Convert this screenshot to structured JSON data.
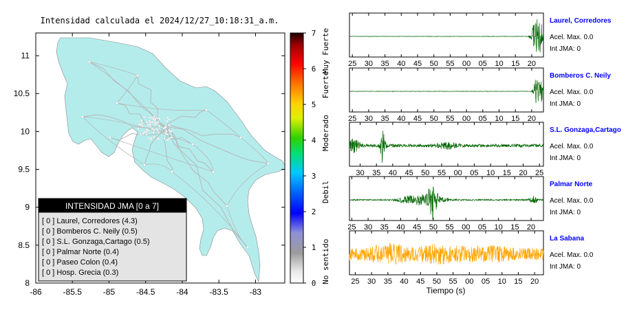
{
  "chart_data": [
    {
      "type": "map",
      "title": "Intensidad calculada el 2024/12/27_10:18:31_a.m.",
      "x_ticks": [
        "-86",
        "-85.5",
        "-85",
        "-84.5",
        "-84",
        "-83.5",
        "-83"
      ],
      "y_ticks": [
        "11",
        "10.5",
        "10",
        "9.5",
        "9",
        "8.5",
        "8"
      ],
      "xlim": [
        -86,
        -82.6
      ],
      "ylim": [
        8,
        11.3
      ],
      "land_color": "#b4ecec",
      "road_color": "#b8b8b8",
      "legend": {
        "title": "INTENSIDAD JMA [0 a 7]",
        "items": [
          "[ 0 ] Laurel, Corredores (4.3)",
          "[ 0 ] Bomberos C. Neily (0.5)",
          "[ 0 ] S.L. Gonzaga,Cartago (0.5)",
          "[ 0 ] Palmar Norte (0.4)",
          "[ 0 ] Paseo Colon (0.4)",
          "[ 0 ] Hosp. Grecia (0.3)"
        ]
      },
      "colorbar": {
        "ticks": [
          "0",
          "1",
          "2",
          "3",
          "4",
          "5",
          "6",
          "7"
        ],
        "range": [
          0,
          7
        ],
        "labels": [
          "No sentido",
          "Debil",
          "Moderado",
          "Fuerte",
          "Muy Fuerte"
        ]
      }
    },
    {
      "type": "line",
      "xlabel": "Tiempo (s)",
      "seismograms": [
        {
          "name": "Laurel, Corredores",
          "acel_label": "Acel. Max. 0.0",
          "jma_label": "Int JMA: 0",
          "color": "#006400",
          "ticks": [
            "25",
            "30",
            "35",
            "40",
            "45",
            "50",
            "55",
            "00",
            "05",
            "10",
            "15",
            "20"
          ]
        },
        {
          "name": "Bomberos C. Neily",
          "acel_label": "Acel. Max. 0.0",
          "jma_label": "Int JMA: 0",
          "color": "#006400",
          "ticks": [
            "25",
            "30",
            "35",
            "40",
            "45",
            "50",
            "55",
            "00",
            "05",
            "10",
            "15",
            "20"
          ]
        },
        {
          "name": "S.L. Gonzaga,Cartago",
          "acel_label": "Acel. Max. 0.0",
          "jma_label": "Int JMA: 0",
          "color": "#006400",
          "ticks": [
            "30",
            "35",
            "40",
            "45",
            "50",
            "55",
            "00",
            "05",
            "10",
            "15",
            "20",
            "25"
          ]
        },
        {
          "name": "Palmar Norte",
          "acel_label": "Acel. Max. 0.0",
          "jma_label": "Int JMA: 0",
          "color": "#006400",
          "ticks": [
            "25",
            "30",
            "35",
            "40",
            "45",
            "50",
            "55",
            "00",
            "05",
            "10",
            "15",
            "20"
          ]
        },
        {
          "name": "La Sabana",
          "acel_label": "Acel. Max. 0.0",
          "jma_label": "Int JMA: 0",
          "color": "#ffa500",
          "ticks": [
            "25",
            "30",
            "35",
            "40",
            "45",
            "50",
            "55",
            "00",
            "05",
            "10",
            "15",
            "20"
          ]
        }
      ]
    }
  ],
  "colors": {
    "station_name": "#0000ff",
    "frame": "#000000"
  }
}
